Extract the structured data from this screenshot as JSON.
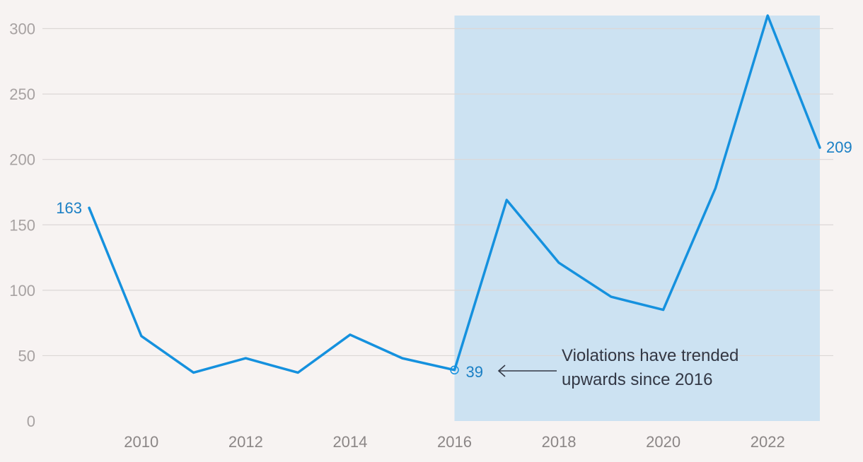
{
  "chart_data": {
    "type": "line",
    "title": "",
    "xlabel": "",
    "ylabel": "",
    "x": [
      2009,
      2010,
      2011,
      2012,
      2013,
      2014,
      2015,
      2016,
      2017,
      2018,
      2019,
      2020,
      2021,
      2022,
      2023
    ],
    "series": [
      {
        "values": [
          163,
          65,
          37,
          48,
          37,
          66,
          48,
          39,
          169,
          121,
          95,
          85,
          178,
          310,
          209
        ]
      }
    ],
    "xlim": [
      2008,
      2024
    ],
    "ylim": [
      0,
      310
    ],
    "x_ticks": [
      "2010",
      "2012",
      "2014",
      "2016",
      "2018",
      "2020",
      "2022"
    ],
    "y_ticks": [
      "0",
      "50",
      "100",
      "150",
      "200",
      "250",
      "300"
    ],
    "grid": "horizontal",
    "highlight_range": [
      2016,
      2023
    ],
    "data_labels": [
      {
        "x": 2009,
        "text": "163"
      },
      {
        "x": 2016,
        "text": "39"
      },
      {
        "x": 2023,
        "text": "209"
      }
    ],
    "annotation": {
      "x": 2016,
      "lines": [
        "Violations have trended",
        "upwards since 2016"
      ]
    },
    "colors": {
      "line": "#1591de",
      "highlight": "#cce2f2",
      "label": "#1a7fc4",
      "annotation": "#333845",
      "background": "#f7f3f2"
    }
  }
}
